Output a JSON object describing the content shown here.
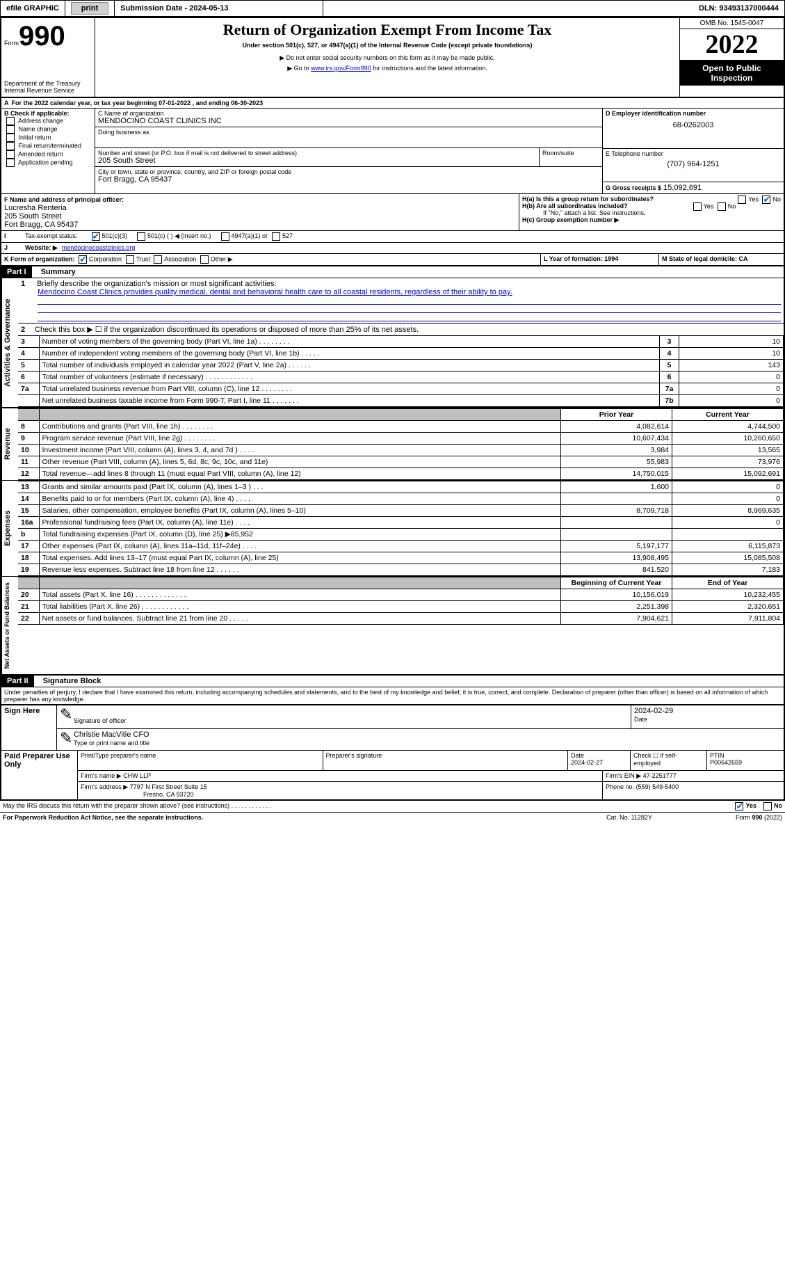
{
  "topbar": {
    "efile": "efile GRAPHIC",
    "print": "print",
    "subdate_label": "Submission Date - 2024-05-13",
    "dln": "DLN: 93493137000444"
  },
  "header": {
    "form_label": "Form",
    "form_no": "990",
    "title": "Return of Organization Exempt From Income Tax",
    "subtitle": "Under section 501(c), 527, or 4947(a)(1) of the Internal Revenue Code (except private foundations)",
    "warn1": "▶ Do not enter social security numbers on this form as it may be made public.",
    "warn2": "▶ Go to ",
    "warn2_link": "www.irs.gov/Form990",
    "warn2_tail": " for instructions and the latest information.",
    "dept": "Department of the Treasury",
    "irs": "Internal Revenue Service",
    "omb": "OMB No. 1545-0047",
    "year": "2022",
    "open": "Open to Public Inspection"
  },
  "A": {
    "text": "For the 2022 calendar year, or tax year beginning 07-01-2022    , and ending 06-30-2023"
  },
  "B": {
    "label": "B Check if applicable:",
    "items": [
      "Address change",
      "Name change",
      "Initial return",
      "Final return/terminated",
      "Amended return",
      "Application pending"
    ]
  },
  "C": {
    "name_label": "C Name of organization",
    "name": "MENDOCINO COAST CLINICS INC",
    "dba_label": "Doing business as",
    "addr_label": "Number and street (or P.O. box if mail is not delivered to street address)",
    "room": "Room/suite",
    "addr": "205 South Street",
    "city_label": "City or town, state or province, country, and ZIP or foreign postal code",
    "city": "Fort Bragg, CA  95437"
  },
  "D": {
    "label": "D Employer identification number",
    "val": "68-0262003"
  },
  "E": {
    "label": "E Telephone number",
    "val": "(707) 964-1251"
  },
  "G": {
    "label": "G Gross receipts $",
    "val": "15,092,691"
  },
  "F": {
    "label": "F Name and address of principal officer:",
    "name": "Lucresha Renteria",
    "addr1": "205 South Street",
    "addr2": "Fort Bragg, CA  95437"
  },
  "H": {
    "a": "H(a)  Is this a group return for subordinates?",
    "b": "H(b)  Are all subordinates included?",
    "note": "If \"No,\" attach a list. See instructions.",
    "c": "H(c)  Group exemption number ▶"
  },
  "I": {
    "label": "Tax-exempt status:",
    "o1": "501(c)(3)",
    "o2": "501(c) (   ) ◀ (insert no.)",
    "o3": "4947(a)(1) or",
    "o4": "527"
  },
  "J": {
    "label": "Website: ▶",
    "val": "mendocinocoastclinics.org"
  },
  "K": {
    "label": "K Form of organization:",
    "o1": "Corporation",
    "o2": "Trust",
    "o3": "Association",
    "o4": "Other ▶"
  },
  "L": {
    "label": "L Year of formation: 1994"
  },
  "M": {
    "label": "M State of legal domicile: CA"
  },
  "part1": {
    "hdr": "Part I",
    "title": "Summary"
  },
  "summary": {
    "l1": "Briefly describe the organization's mission or most significant activities:",
    "l1v": "Mendocino Coast Clinics provides quality medical, dental and behavioral health care to all coastal residents, regardless of their ability to pay.",
    "l2": "Check this box ▶ ☐  if the organization discontinued its operations or disposed of more than 25% of its net assets.",
    "rows": [
      {
        "n": "3",
        "t": "Number of voting members of the governing body (Part VI, line 1a)    .    .    .    .    .    .    .    .",
        "rn": "3",
        "v": "10"
      },
      {
        "n": "4",
        "t": "Number of independent voting members of the governing body (Part VI, line 1b)   .    .    .    .    .",
        "rn": "4",
        "v": "10"
      },
      {
        "n": "5",
        "t": "Total number of individuals employed in calendar year 2022 (Part V, line 2a)   .    .    .    .    .    .",
        "rn": "5",
        "v": "143"
      },
      {
        "n": "6",
        "t": "Total number of volunteers (estimate if necessary)   .    .    .    .    .    .    .    .    .    .    .    .",
        "rn": "6",
        "v": "0"
      },
      {
        "n": "7a",
        "t": "Total unrelated business revenue from Part VIII, column (C), line 12   .    .    .    .    .    .    .    .",
        "rn": "7a",
        "v": "0"
      },
      {
        "n": "",
        "t": "Net unrelated business taxable income from Form 990-T, Part I, line 11   .    .    .    .    .    .    .",
        "rn": "7b",
        "v": "0"
      }
    ],
    "cols": {
      "py": "Prior Year",
      "cy": "Current Year",
      "bcy": "Beginning of Current Year",
      "eoy": "End of Year"
    },
    "rev": [
      {
        "n": "8",
        "t": "Contributions and grants (Part VIII, line 1h)    .    .    .    .    .    .    .    .",
        "p": "4,082,614",
        "c": "4,744,500"
      },
      {
        "n": "9",
        "t": "Program service revenue (Part VIII, line 2g)    .    .    .    .    .    .    .    .",
        "p": "10,607,434",
        "c": "10,260,650"
      },
      {
        "n": "10",
        "t": "Investment income (Part VIII, column (A), lines 3, 4, and 7d )   .    .    .    .",
        "p": "3,984",
        "c": "13,565"
      },
      {
        "n": "11",
        "t": "Other revenue (Part VIII, column (A), lines 5, 6d, 8c, 9c, 10c, and 11e)",
        "p": "55,983",
        "c": "73,976"
      },
      {
        "n": "12",
        "t": "Total revenue—add lines 8 through 11 (must equal Part VIII, column (A), line 12)",
        "p": "14,750,015",
        "c": "15,092,691"
      }
    ],
    "exp": [
      {
        "n": "13",
        "t": "Grants and similar amounts paid (Part IX, column (A), lines 1–3 )    .    .    .",
        "p": "1,600",
        "c": "0"
      },
      {
        "n": "14",
        "t": "Benefits paid to or for members (Part IX, column (A), line 4)    .    .    .    .",
        "p": "",
        "c": "0"
      },
      {
        "n": "15",
        "t": "Salaries, other compensation, employee benefits (Part IX, column (A), lines 5–10)",
        "p": "8,709,718",
        "c": "8,969,635"
      },
      {
        "n": "16a",
        "t": "Professional fundraising fees (Part IX, column (A), line 11e)    .    .    .    .",
        "p": "",
        "c": "0"
      },
      {
        "n": "b",
        "t": "Total fundraising expenses (Part IX, column (D), line 25) ▶85,952",
        "p": "",
        "c": "",
        "gray": true
      },
      {
        "n": "17",
        "t": "Other expenses (Part IX, column (A), lines 11a–11d, 11f–24e)    .    .    .    .",
        "p": "5,197,177",
        "c": "6,115,873"
      },
      {
        "n": "18",
        "t": "Total expenses. Add lines 13–17 (must equal Part IX, column (A), line 25)",
        "p": "13,908,495",
        "c": "15,085,508"
      },
      {
        "n": "19",
        "t": "Revenue less expenses. Subtract line 18 from line 12   .    .    .    .    .    .",
        "p": "841,520",
        "c": "7,183"
      }
    ],
    "net": [
      {
        "n": "20",
        "t": "Total assets (Part X, line 16)   .    .    .    .    .    .    .    .    .    .    .    .    .",
        "p": "10,156,019",
        "c": "10,232,455"
      },
      {
        "n": "21",
        "t": "Total liabilities (Part X, line 26)   .    .    .    .    .    .    .    .    .    .    .    .",
        "p": "2,251,398",
        "c": "2,320,651"
      },
      {
        "n": "22",
        "t": "Net assets or fund balances. Subtract line 21 from line 20   .    .    .    .    .",
        "p": "7,904,621",
        "c": "7,911,804"
      }
    ]
  },
  "part2": {
    "hdr": "Part II",
    "title": "Signature Block"
  },
  "penalties": "Under penalties of perjury, I declare that I have examined this return, including accompanying schedules and statements, and to the best of my knowledge and belief, it is true, correct, and complete. Declaration of preparer (other than officer) is based on all information of which preparer has any knowledge.",
  "sign": {
    "here": "Sign Here",
    "sig_officer": "Signature of officer",
    "date": "Date",
    "date_v": "2024-02-29",
    "name": "Christie MacVitie CFO",
    "name_label": "Type or print name and title"
  },
  "paid": {
    "label": "Paid Preparer Use Only",
    "c1": "Print/Type preparer's name",
    "c2": "Preparer's signature",
    "c3": "Date",
    "c3v": "2024-02-27",
    "c4": "Check ☐ if self-employed",
    "c5": "PTIN",
    "c5v": "P00642659",
    "firm": "Firm's name   ▶",
    "firmv": "CHW LLP",
    "ein": "Firm's EIN ▶",
    "einv": "47-2251777",
    "addr": "Firm's address ▶",
    "addrv1": "7797 N First Street Suite 15",
    "addrv2": "Fresno, CA  93720",
    "phone": "Phone no.",
    "phonev": "(559) 549-5400"
  },
  "footer": {
    "q": "May the IRS discuss this return with the preparer shown above? (see instructions)   .    .    .    .    .    .    .    .    .    .    .    .",
    "yes": "Yes",
    "no": "No",
    "pra": "For Paperwork Reduction Act Notice, see the separate instructions.",
    "cat": "Cat. No. 11282Y",
    "form": "Form 990 (2022)"
  },
  "vtabs": {
    "ag": "Activities & Governance",
    "rev": "Revenue",
    "exp": "Expenses",
    "net": "Net Assets or Fund Balances"
  }
}
